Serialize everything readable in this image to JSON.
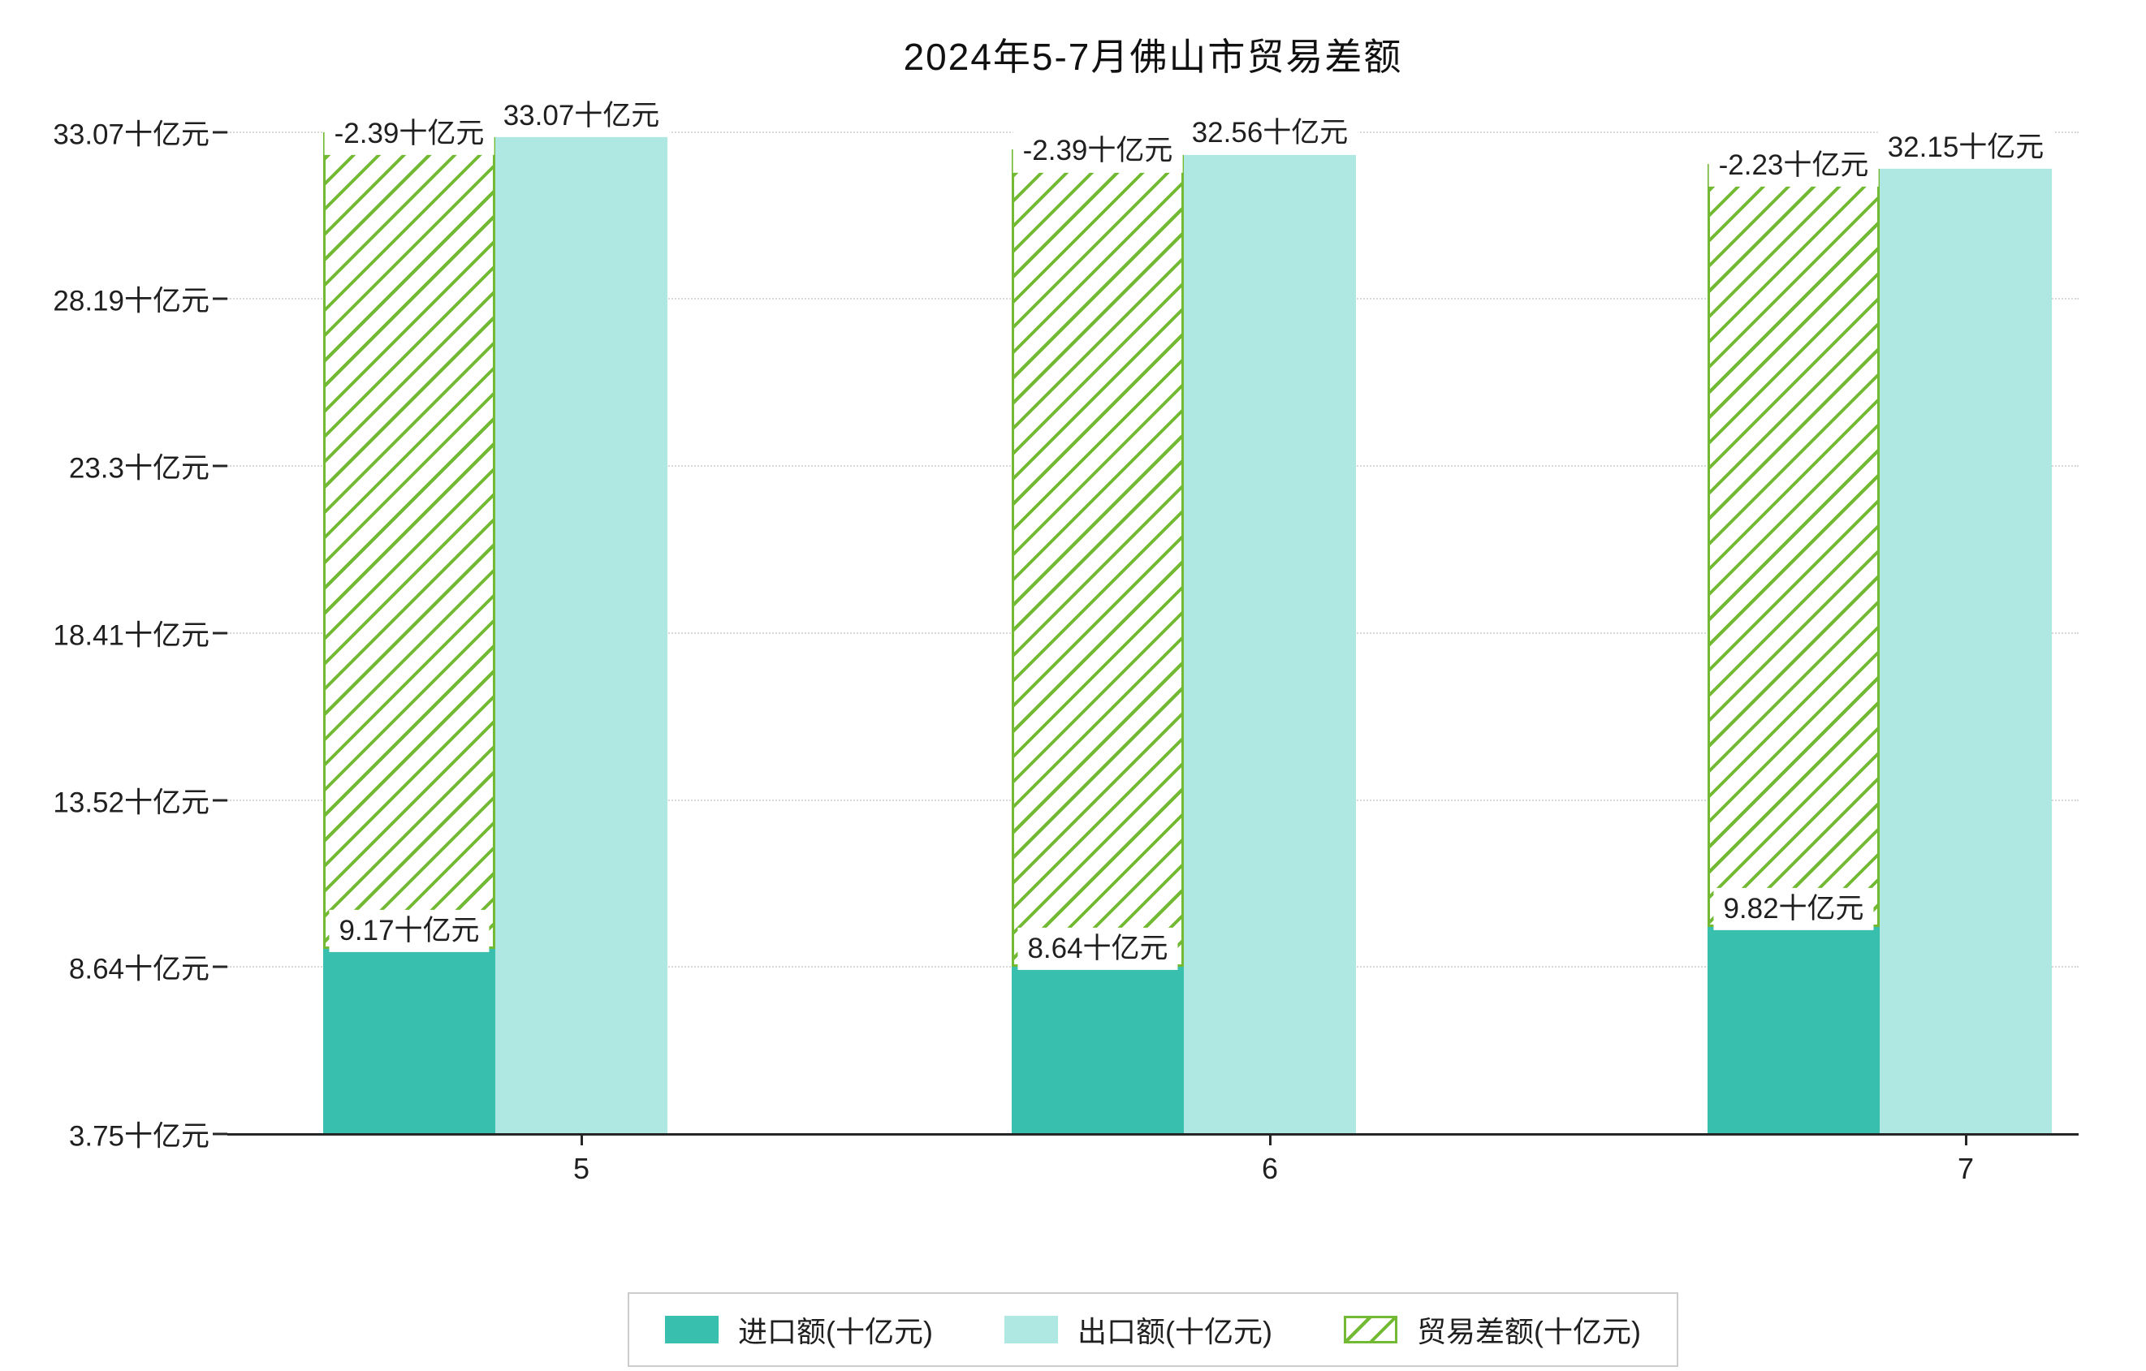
{
  "title": "2024年5-7月佛山市贸易差额",
  "chart_data": {
    "type": "bar",
    "title": "2024年5-7月佛山市贸易差额",
    "xlabel": "",
    "ylabel": "",
    "unit": "十亿元",
    "categories": [
      "5",
      "6",
      "7"
    ],
    "series": [
      {
        "name": "进口额(十亿元)",
        "color": "#38bfad",
        "style": "solid",
        "values": [
          9.17,
          8.64,
          9.82
        ],
        "labels": [
          "9.17十亿元",
          "8.64十亿元",
          "9.82十亿元"
        ]
      },
      {
        "name": "出口额(十亿元)",
        "color": "#afe8e2",
        "style": "solid",
        "values": [
          33.07,
          32.56,
          32.15
        ],
        "labels": [
          "33.07十亿元",
          "32.56十亿元",
          "32.15十亿元"
        ]
      },
      {
        "name": "贸易差额(十亿元)",
        "color": "#72ba33",
        "style": "hatched",
        "values": [
          -2.39,
          -2.39,
          -2.23
        ],
        "labels": [
          "-2.39十亿元",
          "-2.39十亿元",
          "-2.23十亿元"
        ]
      }
    ],
    "ylim": [
      3.75,
      33.07
    ],
    "yticks": [
      3.75,
      8.64,
      13.52,
      18.41,
      23.3,
      28.19,
      33.07
    ],
    "ytick_labels": [
      "3.75十亿元",
      "8.64十亿元",
      "13.52十亿元",
      "18.41十亿元",
      "23.3十亿元",
      "28.19十亿元",
      "33.07十亿元"
    ],
    "grid": "horizontal-dotted",
    "legend_position": "bottom"
  }
}
